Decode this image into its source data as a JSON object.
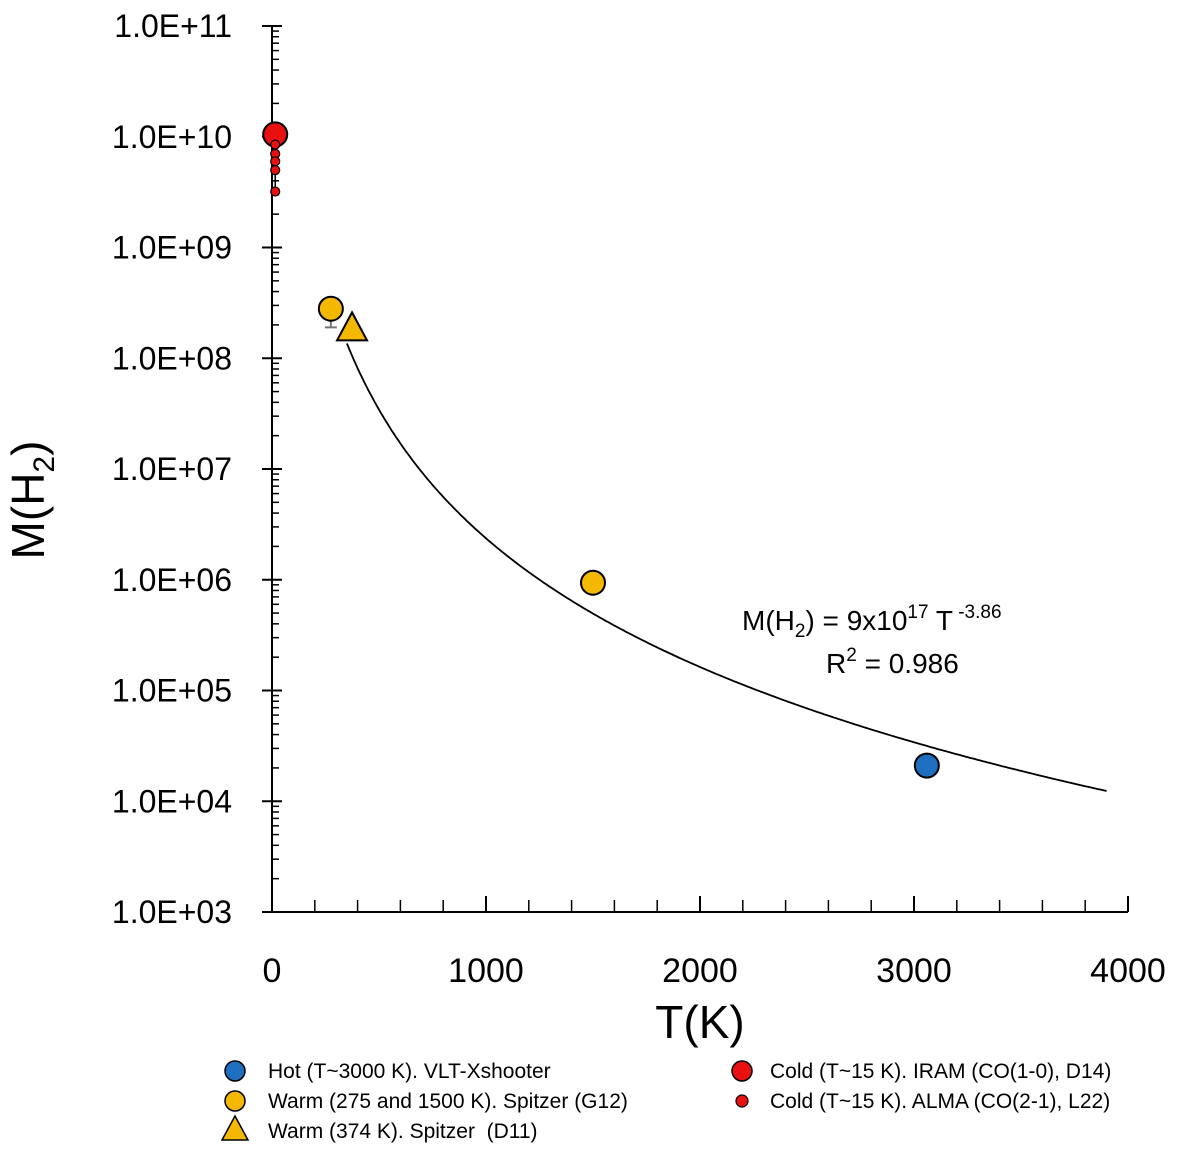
{
  "chart_data": {
    "type": "scatter",
    "xlabel": "T(K)",
    "ylabel_main": "M(H",
    "ylabel_sub": "2",
    "ylabel_close": ")",
    "y_scale": "log",
    "xlim": [
      0,
      4000
    ],
    "ylim": [
      1000,
      100000000000
    ],
    "x_tick_labels": [
      "0",
      "1000",
      "2000",
      "3000",
      "4000"
    ],
    "x_tick_values": [
      0,
      1000,
      2000,
      3000,
      4000
    ],
    "y_tick_labels": [
      "1.0E+03",
      "1.0E+04",
      "1.0E+05",
      "1.0E+06",
      "1.0E+07",
      "1.0E+08",
      "1.0E+09",
      "1.0E+10",
      "1.0E+11"
    ],
    "y_tick_values": [
      1000,
      10000,
      100000,
      1000000,
      10000000,
      100000000,
      1000000000,
      10000000000,
      100000000000
    ],
    "series": [
      {
        "name": "Hot (T~3000 K). VLT-Xshooter",
        "marker": "circle",
        "size": "large",
        "color": "#1f6fc0",
        "points": [
          {
            "x": 3060,
            "y": 21000
          }
        ]
      },
      {
        "name": "Warm (275 and 1500 K). Spitzer (G12)",
        "marker": "circle",
        "size": "large",
        "color": "#f5b800",
        "points": [
          {
            "x": 275,
            "y": 280000000
          },
          {
            "x": 1500,
            "y": 940000
          }
        ]
      },
      {
        "name": "Warm (374 K). Spitzer  (D11)",
        "marker": "triangle",
        "size": "large",
        "color": "#f5b800",
        "points": [
          {
            "x": 374,
            "y": 190000000
          }
        ]
      },
      {
        "name": "Cold (T~15 K). IRAM (CO(1-0), D14)",
        "marker": "circle",
        "size": "large",
        "color": "#e81010",
        "points": [
          {
            "x": 15,
            "y": 10500000000
          }
        ]
      },
      {
        "name": "Cold (T~15 K). ALMA (CO(2-1), L22)",
        "marker": "circle",
        "size": "small",
        "color": "#e81010",
        "points": [
          {
            "x": 15,
            "y": 8500000000
          },
          {
            "x": 15,
            "y": 7000000000
          },
          {
            "x": 15,
            "y": 6000000000
          },
          {
            "x": 15,
            "y": 5000000000
          },
          {
            "x": 15,
            "y": 3200000000
          }
        ]
      }
    ],
    "error_bars": [
      {
        "x": 275,
        "y_low": 190000000,
        "y_high": 330000000
      }
    ],
    "fit": {
      "coefficient": 900000000000000000,
      "exponent": -3.86,
      "x_range": [
        350,
        3900
      ],
      "label_prefix": "M(H",
      "label_sub": "2",
      "label_mid": ") = 9x10",
      "label_exp": "17",
      "label_T": " T",
      "label_T_exp": " -3.86",
      "r2_label": "R",
      "r2_exp": "2",
      "r2_value": " = 0.986"
    },
    "legend_position": "bottom"
  },
  "legend": {
    "items": [
      {
        "label": "Hot (T~3000 K). VLT-Xshooter",
        "marker": "circle",
        "size": "large",
        "color": "#1f6fc0"
      },
      {
        "label": "Warm (275 and 1500 K). Spitzer (G12)",
        "marker": "circle",
        "size": "large",
        "color": "#f5b800"
      },
      {
        "label": "Warm (374 K). Spitzer  (D11)",
        "marker": "triangle",
        "size": "large",
        "color": "#f5b800"
      },
      {
        "label": "Cold (T~15 K). IRAM (CO(1-0), D14)",
        "marker": "circle",
        "size": "large",
        "color": "#e81010"
      },
      {
        "label": "Cold (T~15 K). ALMA (CO(2-1), L22)",
        "marker": "circle",
        "size": "small",
        "color": "#e81010"
      }
    ]
  }
}
